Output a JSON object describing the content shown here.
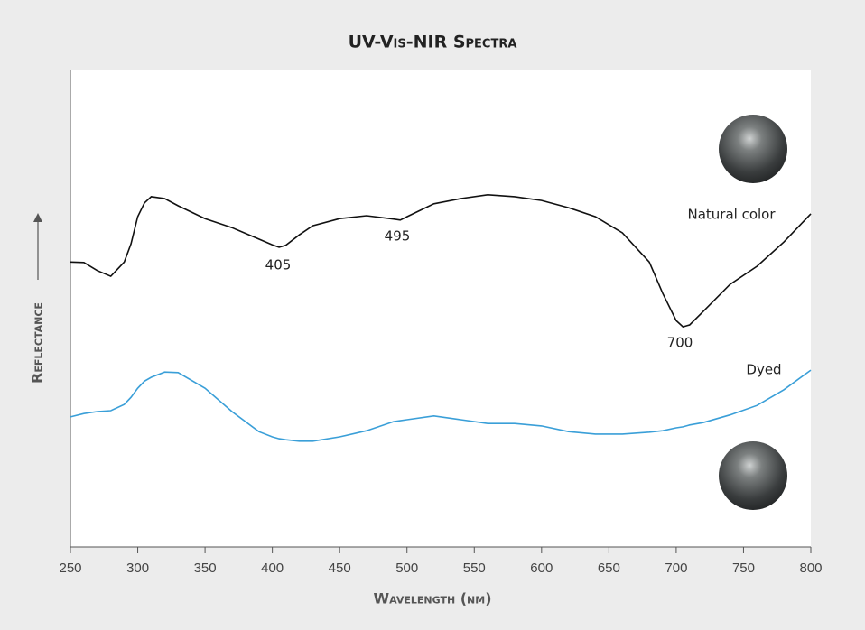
{
  "chart_data": {
    "type": "line",
    "title": "UV-Vis-NIR Spectra",
    "x_label": "Wavelength (nm)",
    "y_label": "Reflectance",
    "x": [
      250,
      260,
      270,
      280,
      290,
      295,
      300,
      305,
      310,
      320,
      330,
      350,
      370,
      390,
      400,
      405,
      410,
      420,
      430,
      450,
      470,
      490,
      495,
      500,
      520,
      540,
      560,
      580,
      600,
      620,
      640,
      660,
      680,
      690,
      700,
      705,
      710,
      720,
      740,
      760,
      780,
      800
    ],
    "series": [
      {
        "name": "Natural color",
        "color": "#111111",
        "values": [
          59.8,
          59.7,
          58.0,
          56.8,
          59.8,
          63.6,
          69.3,
          72.2,
          73.5,
          73.1,
          71.6,
          68.9,
          67.0,
          64.6,
          63.4,
          62.9,
          63.3,
          65.5,
          67.4,
          68.9,
          69.5,
          68.8,
          68.6,
          69.3,
          72.0,
          73.1,
          73.9,
          73.5,
          72.7,
          71.2,
          69.3,
          65.9,
          59.8,
          53.2,
          47.5,
          46.2,
          46.6,
          49.4,
          55.1,
          58.9,
          64.0,
          69.9
        ]
      },
      {
        "name": "Dyed",
        "color": "#3a9fd8",
        "values": [
          27.3,
          28.0,
          28.4,
          28.6,
          29.9,
          31.4,
          33.3,
          34.8,
          35.6,
          36.7,
          36.6,
          33.3,
          28.4,
          24.2,
          23.1,
          22.7,
          22.5,
          22.2,
          22.2,
          23.1,
          24.4,
          26.3,
          26.5,
          26.7,
          27.5,
          26.7,
          25.9,
          25.9,
          25.4,
          24.2,
          23.7,
          23.7,
          24.1,
          24.4,
          25.0,
          25.2,
          25.6,
          26.1,
          27.7,
          29.7,
          33.0,
          37.1
        ]
      }
    ],
    "annotations": [
      "405",
      "495",
      "700"
    ],
    "xlim": [
      250,
      800
    ],
    "xticks": [
      250,
      300,
      350,
      400,
      450,
      500,
      550,
      600,
      650,
      700,
      750,
      800
    ],
    "ylim": [
      0,
      100
    ]
  }
}
